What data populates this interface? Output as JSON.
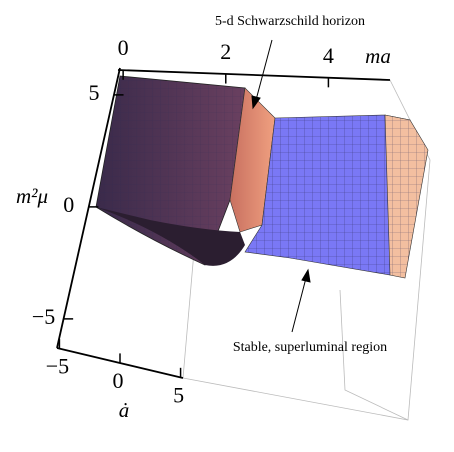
{
  "chart_data": {
    "type": "surface3d",
    "annotations": [
      "5-d Schwarzschild horizon",
      "Stable, superluminal region"
    ],
    "xlabel": "ma",
    "xlim": [
      -0.1,
      5.2
    ],
    "xticks": [
      0,
      2,
      4
    ],
    "ylabel": "ȧ",
    "ylim": [
      -5.2,
      5.2
    ],
    "yticks": [
      {
        "value": -5,
        "label": "−5"
      },
      0,
      5
    ],
    "zlabel": "m²μ",
    "zlim": [
      -6.3,
      6.2
    ],
    "zticks": [
      {
        "value": -5,
        "label": "−5"
      },
      0,
      5
    ]
  }
}
